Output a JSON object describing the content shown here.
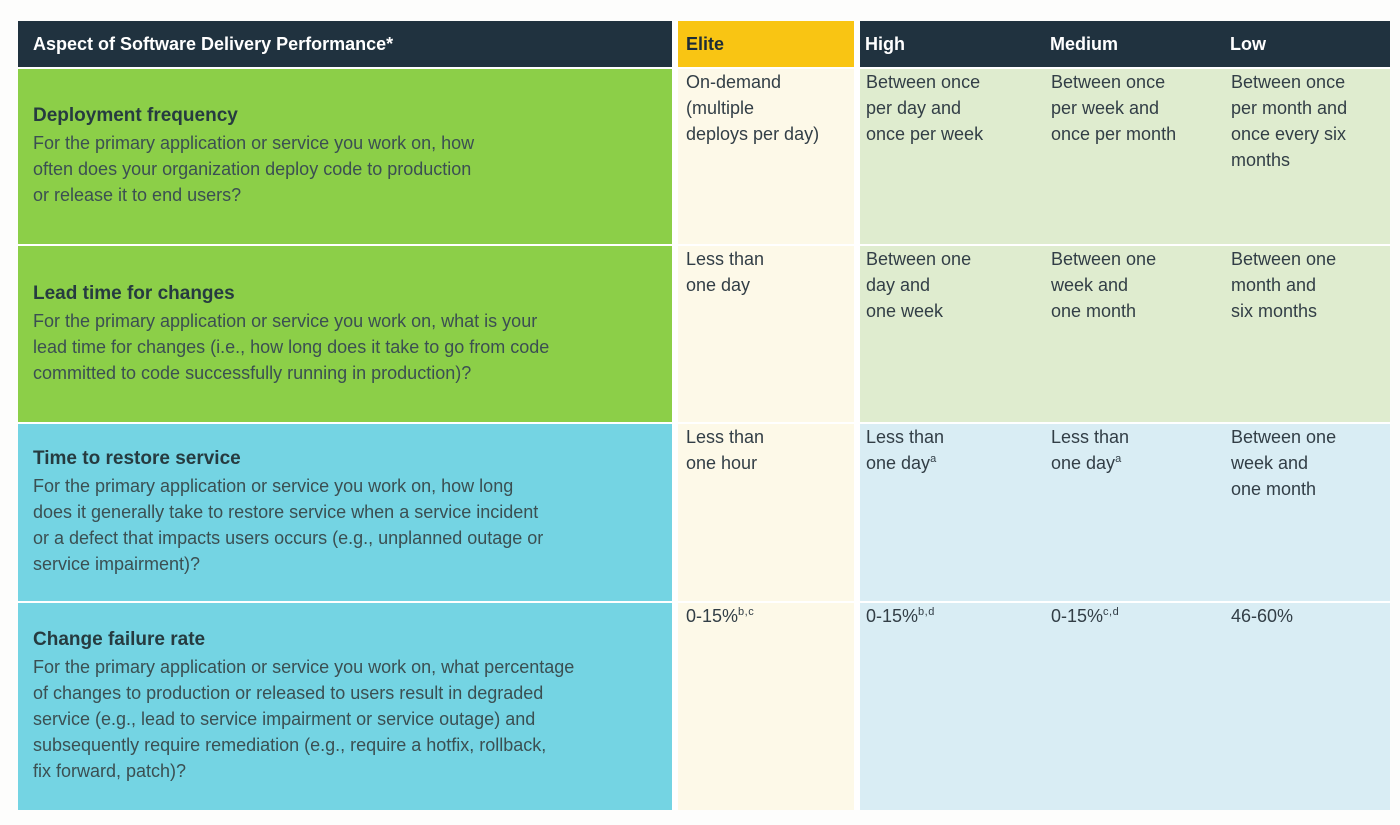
{
  "chart_data": {
    "type": "table",
    "title": "Aspect of Software Delivery Performance*",
    "header": {
      "aspect": "Aspect of Software Delivery Performance*",
      "levels": [
        "Elite",
        "High",
        "Medium",
        "Low"
      ]
    },
    "rows": [
      {
        "metric": "Deployment frequency",
        "question": "For the primary application or service you work on, how\noften does your organization deploy code to production\nor release it to end users?",
        "elite": {
          "text": "On-demand\n(multiple\ndeploys per day)",
          "sup": ""
        },
        "high": {
          "text": "Between once\nper day and\nonce per week",
          "sup": ""
        },
        "medium": {
          "text": "Between once\nper week and\nonce per month",
          "sup": ""
        },
        "low": {
          "text": "Between once\nper month and\nonce every six\nmonths",
          "sup": ""
        }
      },
      {
        "metric": "Lead time for changes",
        "question": "For the primary application or service you work on, what is your\nlead time for changes (i.e., how long does it take to go from code\ncommitted to code successfully running in production)?",
        "elite": {
          "text": "Less than\none day",
          "sup": ""
        },
        "high": {
          "text": "Between one\nday and\none week",
          "sup": ""
        },
        "medium": {
          "text": "Between one\nweek and\none month",
          "sup": ""
        },
        "low": {
          "text": "Between one\nmonth and\nsix months",
          "sup": ""
        }
      },
      {
        "metric": "Time to restore service",
        "question": "For the primary application or service you work on, how long\ndoes it generally take to restore service when a service incident\nor a defect that impacts users occurs (e.g., unplanned outage or\nservice impairment)?",
        "elite": {
          "text": "Less than\none hour",
          "sup": ""
        },
        "high": {
          "text": "Less than\none day",
          "sup": "a"
        },
        "medium": {
          "text": "Less than\none day",
          "sup": "a"
        },
        "low": {
          "text": "Between one\nweek and\none month",
          "sup": ""
        }
      },
      {
        "metric": "Change failure rate",
        "question": "For the primary application or service you work on, what percentage\nof changes to production or released to users result in degraded\nservice (e.g., lead to service impairment or service outage) and\nsubsequently require remediation (e.g., require a hotfix, rollback,\nfix forward, patch)?",
        "elite": {
          "text": "0-15%",
          "sup": "b,c"
        },
        "high": {
          "text": "0-15%",
          "sup": "b,d"
        },
        "medium": {
          "text": "0-15%",
          "sup": "c,d"
        },
        "low": {
          "text": "46-60%",
          "sup": ""
        }
      }
    ]
  },
  "colors": {
    "header_bg": "#20323f",
    "header_text": "#ffffff",
    "elite_header_bg": "#f9c513",
    "elite_header_text": "#1d2c37",
    "green_row_bg": "#8ccf48",
    "cyan_row_bg": "#74d4e3",
    "cream_cell_bg": "#fdf9e8",
    "light_green_cell_bg": "#dfeccf",
    "light_blue_cell_bg": "#d9edf4",
    "metric_title_text": "#263b40",
    "question_text": "#3b4f52",
    "value_text": "#323e46",
    "divider": "#ffffff"
  }
}
